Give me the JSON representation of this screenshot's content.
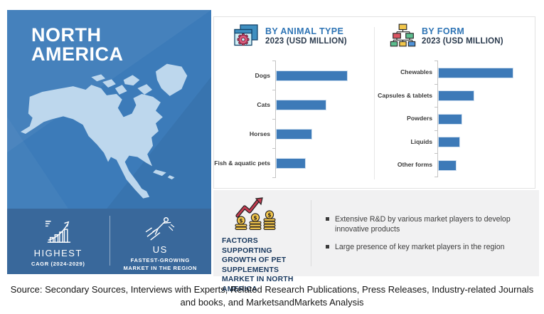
{
  "page": {
    "source_line": "Source: Secondary Sources, Interviews with Experts, Related Research Publications, Press Releases, Industry-related Journals and books, and MarketsandMarkets Analysis"
  },
  "region_panel": {
    "title_line1": "NORTH",
    "title_line2": "AMERICA",
    "map": "north-america-silhouette",
    "colors": {
      "panel_blue": "#3c7bb9",
      "strip_blue": "#39689b",
      "map_fill": "#bdd7ed"
    },
    "highlights": [
      {
        "icon": "growth-chart-icon",
        "title": "HIGHEST",
        "subtitle": "CAGR (2024-2029)"
      },
      {
        "icon": "flying-person-icon",
        "title": "US",
        "subtitle": "FASTEST-GROWING MARKET IN THE REGION"
      }
    ]
  },
  "chart_data": [
    {
      "type": "bar",
      "orientation": "horizontal",
      "icon": "window-gear-icon",
      "title": "BY ANIMAL TYPE",
      "subtitle": "2023 (USD MILLION)",
      "categories": [
        "Dogs",
        "Cats",
        "Horses",
        "Fish & aquatic pets"
      ],
      "values": [
        99,
        69,
        49,
        40
      ],
      "value_labels_shown": false,
      "bar_color": "#3d7ab8",
      "grid": false,
      "legend": false
    },
    {
      "type": "bar",
      "orientation": "horizontal",
      "icon": "org-chart-icon",
      "title": "BY FORM",
      "subtitle": "2023 (USD MILLION)",
      "categories": [
        "Chewables",
        "Capsules & tablets",
        "Powders",
        "Liquids",
        "Other forms"
      ],
      "values": [
        104,
        49,
        32,
        29,
        24
      ],
      "value_labels_shown": false,
      "bar_color": "#3d7ab8",
      "grid": false,
      "legend": false
    }
  ],
  "factors_panel": {
    "icon": "coins-growth-icon",
    "title": "FACTORS SUPPORTING GROWTH OF PET SUPPLEMENTS MARKET IN NORTH AMERICA",
    "bullets": [
      "Extensive R&D by various market players to develop innovative products",
      "Large presence of key market players in the region"
    ]
  }
}
